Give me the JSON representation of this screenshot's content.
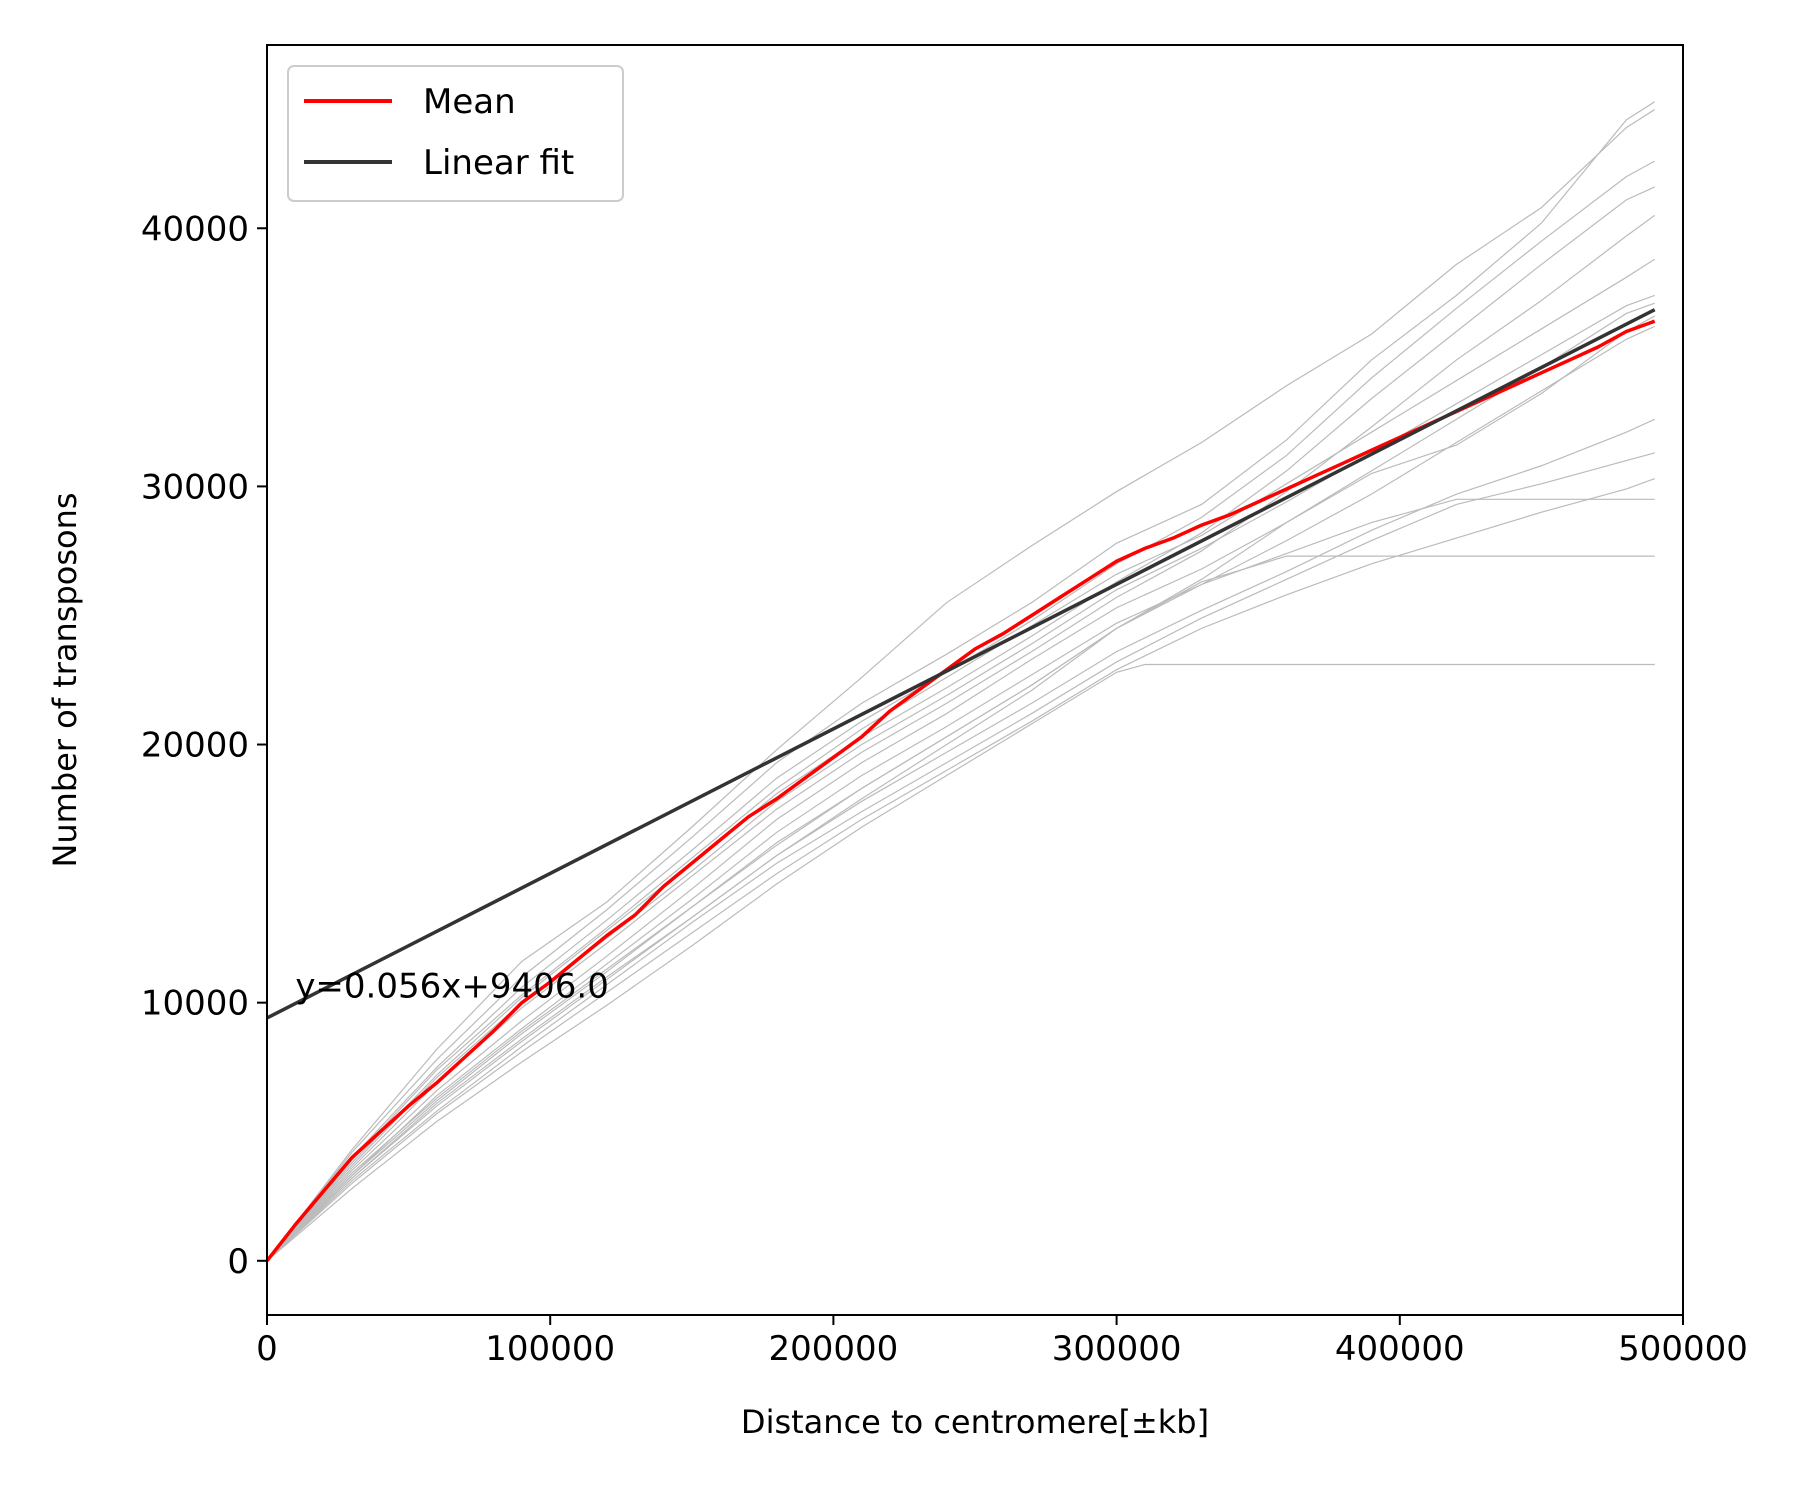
{
  "chart_data": {
    "type": "line",
    "xlabel": "Distance to centromere[±kb]",
    "ylabel": "Number of transposons",
    "xlim": [
      0,
      500000
    ],
    "ylim": [
      -2100,
      47100
    ],
    "xticks": [
      0,
      100000,
      200000,
      300000,
      400000,
      500000
    ],
    "xtick_labels": [
      "0",
      "100000",
      "200000",
      "300000",
      "400000",
      "500000"
    ],
    "yticks": [
      0,
      10000,
      20000,
      30000,
      40000
    ],
    "ytick_labels": [
      "0",
      "10000",
      "20000",
      "30000",
      "40000"
    ],
    "grid": false,
    "legend_position": "upper-left",
    "annotation": "y=0.056x+9406.0",
    "annotation_at": [
      10000,
      10200
    ],
    "colors": {
      "mean": "#ff0000",
      "fit": "#333333",
      "individual": "#bbbbbb"
    },
    "series": [
      {
        "name": "Mean",
        "role": "mean",
        "x": [
          0,
          10000,
          20000,
          30000,
          40000,
          50000,
          60000,
          70000,
          80000,
          90000,
          100000,
          110000,
          120000,
          130000,
          140000,
          150000,
          160000,
          170000,
          180000,
          190000,
          200000,
          210000,
          220000,
          230000,
          240000,
          250000,
          260000,
          270000,
          280000,
          290000,
          300000,
          310000,
          320000,
          330000,
          340000,
          350000,
          360000,
          370000,
          380000,
          390000,
          400000,
          410000,
          420000,
          430000,
          440000,
          450000,
          460000,
          470000,
          480000,
          490000
        ],
        "values": [
          0,
          1400,
          2700,
          4000,
          5000,
          6000,
          6900,
          7900,
          8900,
          10000,
          10800,
          11700,
          12600,
          13400,
          14500,
          15400,
          16300,
          17200,
          17900,
          18700,
          19500,
          20300,
          21300,
          22100,
          22900,
          23700,
          24300,
          25000,
          25700,
          26400,
          27100,
          27600,
          28000,
          28500,
          28900,
          29400,
          29900,
          30400,
          30900,
          31400,
          31900,
          32400,
          32900,
          33400,
          33900,
          34400,
          34900,
          35400,
          36000,
          36400
        ]
      },
      {
        "name": "Linear fit",
        "role": "fit",
        "x": [
          0,
          490000
        ],
        "values": [
          9406,
          36846
        ]
      }
    ],
    "individual_series": [
      {
        "x": [
          0,
          30000,
          60000,
          90000,
          120000,
          150000,
          180000,
          210000,
          240000,
          270000,
          300000,
          330000,
          360000,
          390000,
          420000,
          450000,
          480000,
          490000
        ],
        "values": [
          0,
          4200,
          7800,
          11000,
          13600,
          16400,
          19300,
          21600,
          23500,
          25500,
          27800,
          29300,
          31800,
          34900,
          37400,
          40200,
          44200,
          44900
        ]
      },
      {
        "x": [
          0,
          30000,
          60000,
          90000,
          120000,
          150000,
          180000,
          210000,
          240000,
          270000,
          300000,
          330000,
          360000,
          390000,
          420000,
          450000,
          480000,
          490000
        ],
        "values": [
          0,
          4000,
          7500,
          10600,
          13200,
          15900,
          18700,
          20900,
          22800,
          24800,
          27000,
          28800,
          31200,
          34200,
          36900,
          39500,
          42000,
          42600
        ]
      },
      {
        "x": [
          0,
          30000,
          60000,
          90000,
          120000,
          150000,
          180000,
          210000,
          240000,
          270000,
          300000,
          330000,
          360000,
          390000,
          420000,
          450000,
          480000,
          490000
        ],
        "values": [
          0,
          3800,
          7200,
          10200,
          12800,
          15400,
          18100,
          20300,
          22200,
          24200,
          26300,
          28200,
          30600,
          33400,
          36000,
          38600,
          41100,
          41600
        ]
      },
      {
        "x": [
          0,
          30000,
          60000,
          90000,
          120000,
          150000,
          180000,
          210000,
          240000,
          270000,
          300000,
          330000,
          360000,
          390000,
          420000,
          450000,
          480000,
          490000
        ],
        "values": [
          0,
          4300,
          8200,
          11600,
          13900,
          16800,
          19800,
          22600,
          25500,
          27700,
          29800,
          31700,
          33900,
          35900,
          38600,
          40800,
          43900,
          44600
        ]
      },
      {
        "x": [
          0,
          30000,
          60000,
          90000,
          120000,
          150000,
          180000,
          210000,
          240000,
          270000,
          300000,
          330000,
          360000,
          390000,
          420000,
          450000,
          480000,
          490000
        ],
        "values": [
          0,
          3600,
          6900,
          9800,
          12300,
          14900,
          17500,
          19700,
          21600,
          23600,
          25700,
          27500,
          29800,
          32300,
          34900,
          37200,
          39700,
          40500
        ]
      },
      {
        "x": [
          0,
          30000,
          60000,
          90000,
          120000,
          150000,
          180000,
          210000,
          240000,
          270000,
          300000,
          330000,
          360000,
          390000,
          420000,
          450000,
          480000,
          490000
        ],
        "values": [
          0,
          3900,
          7400,
          10300,
          12900,
          15600,
          18300,
          20600,
          22600,
          24600,
          26600,
          28100,
          30100,
          32100,
          34100,
          36100,
          38100,
          38800
        ]
      },
      {
        "x": [
          0,
          30000,
          60000,
          90000,
          120000,
          150000,
          180000,
          210000,
          240000,
          270000,
          300000,
          330000,
          360000,
          390000,
          420000,
          450000,
          480000,
          490000
        ],
        "values": [
          0,
          3700,
          7100,
          10000,
          12500,
          15100,
          17800,
          20000,
          21900,
          23900,
          26000,
          27600,
          29400,
          31300,
          33200,
          35100,
          37000,
          37400
        ]
      },
      {
        "x": [
          0,
          30000,
          60000,
          90000,
          120000,
          150000,
          180000,
          210000,
          240000,
          270000,
          300000,
          330000,
          360000,
          390000,
          420000,
          450000,
          480000,
          490000
        ],
        "values": [
          0,
          3500,
          6600,
          9300,
          11800,
          14400,
          17100,
          19300,
          21200,
          23300,
          25300,
          26800,
          28600,
          30600,
          32600,
          34600,
          36700,
          37100
        ]
      },
      {
        "x": [
          0,
          30000,
          60000,
          90000,
          120000,
          150000,
          180000,
          210000,
          240000,
          270000,
          300000,
          330000,
          360000,
          390000,
          420000,
          450000,
          480000,
          490000
        ],
        "values": [
          0,
          3300,
          6400,
          9000,
          11500,
          14000,
          16600,
          18800,
          20700,
          22700,
          24700,
          26200,
          27900,
          29700,
          31700,
          33700,
          35700,
          36200
        ]
      },
      {
        "x": [
          0,
          30000,
          60000,
          90000,
          120000,
          150000,
          180000,
          210000,
          240000,
          270000,
          300000,
          330000,
          360000,
          390000,
          420000,
          450000,
          480000,
          490000
        ],
        "values": [
          0,
          3400,
          6300,
          8900,
          11300,
          13700,
          16200,
          18300,
          20300,
          22300,
          24500,
          26400,
          28600,
          30500,
          31600,
          33600,
          36000,
          36600
        ]
      },
      {
        "x": [
          0,
          30000,
          60000,
          90000,
          120000,
          150000,
          180000,
          210000,
          240000,
          270000,
          300000,
          330000,
          360000,
          390000,
          420000,
          450000,
          480000,
          490000
        ],
        "values": [
          0,
          3200,
          6100,
          8600,
          11000,
          13300,
          15700,
          17800,
          19700,
          21600,
          23600,
          25200,
          26700,
          28300,
          29700,
          30800,
          32100,
          32600
        ]
      },
      {
        "x": [
          0,
          30000,
          60000,
          90000,
          120000,
          150000,
          180000,
          210000,
          240000,
          270000,
          300000,
          330000,
          360000,
          390000,
          420000,
          450000,
          480000,
          490000
        ],
        "values": [
          0,
          3100,
          5800,
          8300,
          10700,
          13100,
          15400,
          17400,
          19300,
          21200,
          23200,
          24900,
          26400,
          27900,
          29300,
          30100,
          31000,
          31300
        ]
      },
      {
        "x": [
          0,
          30000,
          60000,
          90000,
          120000,
          150000,
          180000,
          210000,
          240000,
          270000,
          300000,
          330000,
          360000,
          390000,
          420000,
          450000,
          480000,
          490000
        ],
        "values": [
          0,
          3000,
          5700,
          8100,
          10400,
          12700,
          15000,
          17100,
          19000,
          20900,
          22900,
          24500,
          25800,
          27000,
          28000,
          29000,
          29900,
          30300
        ]
      },
      {
        "x": [
          0,
          30000,
          60000,
          90000,
          120000,
          150000,
          180000,
          210000,
          240000,
          270000,
          300000,
          330000,
          360000,
          390000,
          420000,
          450000,
          480000,
          490000
        ],
        "values": [
          0,
          3300,
          6200,
          8800,
          11200,
          13700,
          16100,
          18300,
          20300,
          22300,
          24500,
          26200,
          27400,
          28600,
          29500,
          29500,
          29500,
          29500
        ]
      },
      {
        "x": [
          0,
          30000,
          60000,
          90000,
          120000,
          150000,
          180000,
          210000,
          240000,
          270000,
          300000,
          330000,
          360000,
          390000,
          420000,
          450000,
          480000,
          490000
        ],
        "values": [
          0,
          3200,
          6000,
          8500,
          10900,
          13300,
          15700,
          17900,
          20000,
          22100,
          24500,
          26300,
          27300,
          27300,
          27300,
          27300,
          27300,
          27300
        ]
      },
      {
        "x": [
          0,
          30000,
          60000,
          90000,
          120000,
          150000,
          180000,
          210000,
          240000,
          270000,
          300000,
          310000,
          330000,
          360000,
          390000,
          420000,
          450000,
          480000,
          490000
        ],
        "values": [
          0,
          2800,
          5400,
          7700,
          9900,
          12200,
          14600,
          16800,
          18800,
          20800,
          22800,
          23100,
          23100,
          23100,
          23100,
          23100,
          23100,
          23100,
          23100
        ]
      }
    ]
  }
}
